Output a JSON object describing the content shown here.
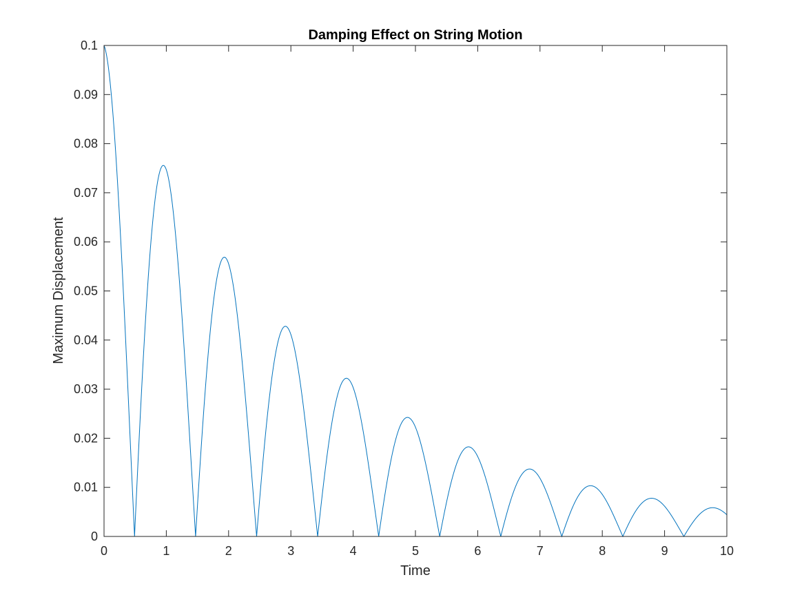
{
  "chart_data": {
    "type": "line",
    "title": "Damping Effect on String Motion",
    "xlabel": "Time",
    "ylabel": "Maximum Displacement",
    "xlim": [
      0,
      10
    ],
    "ylim": [
      0,
      0.1
    ],
    "x_ticks": [
      "0",
      "1",
      "2",
      "3",
      "4",
      "5",
      "6",
      "7",
      "8",
      "9",
      "10"
    ],
    "y_ticks": [
      "0",
      "0.01",
      "0.02",
      "0.03",
      "0.04",
      "0.05",
      "0.06",
      "0.07",
      "0.08",
      "0.09",
      "0.1"
    ],
    "grid": false,
    "line_color": "#0072BD",
    "series": [
      {
        "amplitude": 0.1,
        "decay_rate": 0.29,
        "period": 1.96,
        "function": "abs(A*exp(-d*t)*cos(2*pi*t/period))",
        "peaks": [
          {
            "x": 0,
            "y": 0.1
          },
          {
            "x": 0.97,
            "y": 0.0765
          },
          {
            "x": 1.94,
            "y": 0.058
          },
          {
            "x": 2.92,
            "y": 0.0438
          },
          {
            "x": 3.9,
            "y": 0.0328
          },
          {
            "x": 4.88,
            "y": 0.0246
          },
          {
            "x": 5.87,
            "y": 0.0183
          },
          {
            "x": 6.86,
            "y": 0.0136
          },
          {
            "x": 7.85,
            "y": 0.0101
          },
          {
            "x": 8.85,
            "y": 0.0075
          },
          {
            "x": 9.86,
            "y": 0.0055
          }
        ]
      }
    ]
  }
}
